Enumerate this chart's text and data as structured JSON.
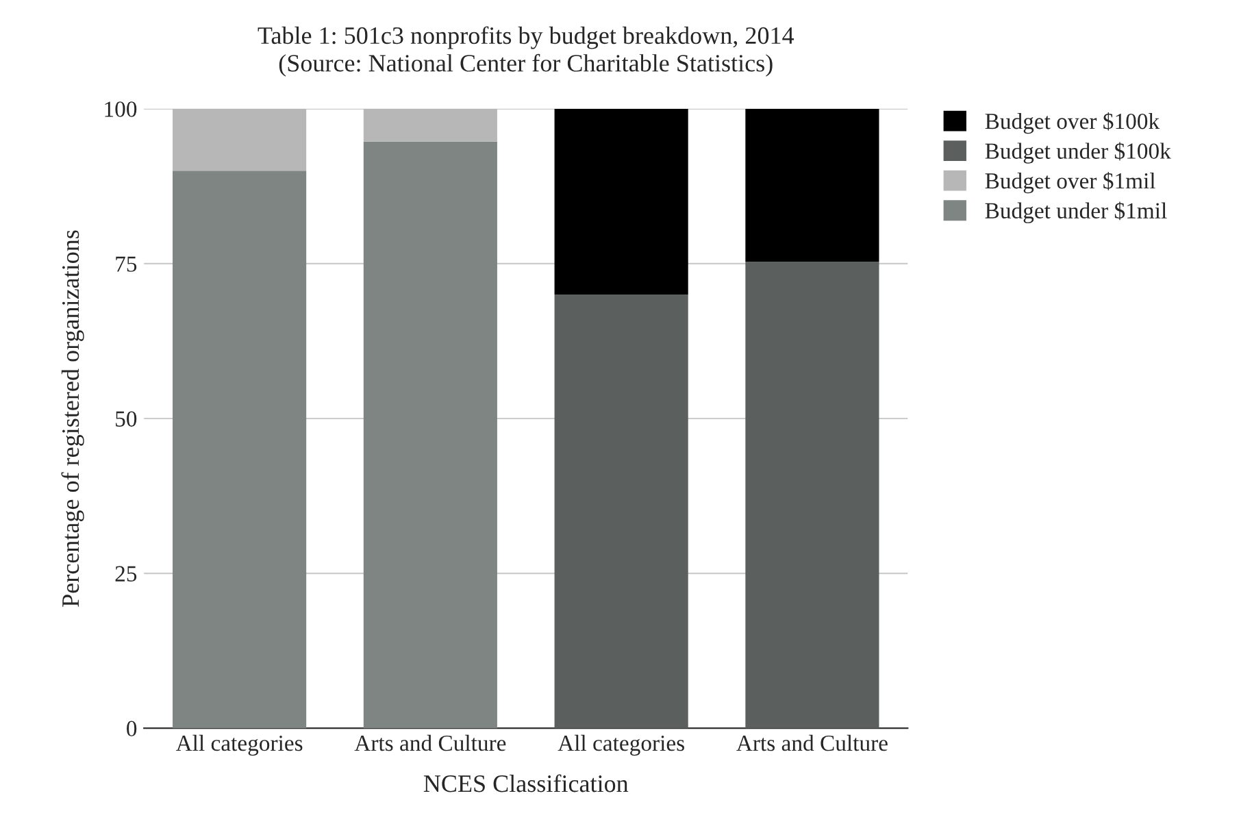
{
  "chart_data": {
    "type": "bar",
    "title": "Table 1: 501c3 nonprofits by budget breakdown, 2014",
    "subtitle": "(Source: National Center for Charitable Statistics)",
    "xlabel": "NCES Classification",
    "ylabel": "Percentage of registered organizations",
    "categories": [
      "All categories",
      "Arts and Culture",
      "All categories",
      "Arts and Culture"
    ],
    "stacked": true,
    "series": [
      {
        "name": "Budget under $1mil",
        "color": "#7f8583",
        "values": [
          90,
          94.7,
          null,
          null
        ]
      },
      {
        "name": "Budget over $1mil",
        "color": "#b7b7b7",
        "values": [
          10,
          5.3,
          null,
          null
        ]
      },
      {
        "name": "Budget under $100k",
        "color": "#5b5f5d",
        "values": [
          null,
          null,
          70,
          75.3
        ]
      },
      {
        "name": "Budget over $100k",
        "color": "#000000",
        "values": [
          null,
          null,
          30,
          24.7
        ]
      }
    ],
    "ylim": [
      0,
      100
    ],
    "yticks": [
      0,
      25,
      50,
      75,
      100
    ],
    "grid": "y",
    "legend": "top right"
  }
}
